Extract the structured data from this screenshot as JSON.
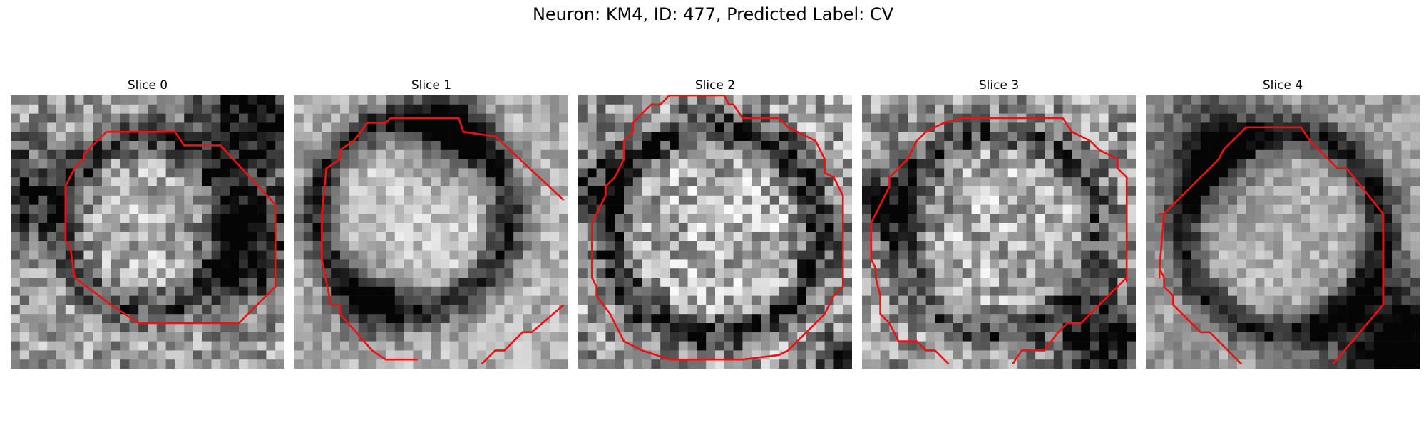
{
  "figure": {
    "title": "Neuron: KM4, ID: 477, Predicted Label: CV",
    "contour_color": "#ee1111"
  },
  "panels": [
    {
      "title": "Slice 0",
      "darkening": "edge-patchy"
    },
    {
      "title": "Slice 1",
      "darkening": "ring-wide"
    },
    {
      "title": "Slice 2",
      "darkening": "ring-noisy"
    },
    {
      "title": "Slice 3",
      "darkening": "ring-lower-right"
    },
    {
      "title": "Slice 4",
      "darkening": "ring-blurred-dark-corner"
    }
  ]
}
